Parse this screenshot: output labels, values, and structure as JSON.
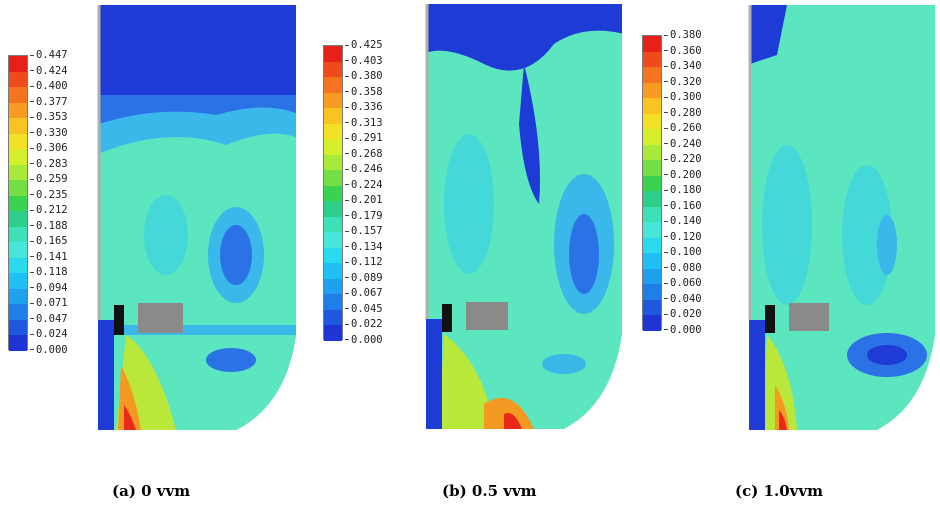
{
  "panels": [
    {
      "caption": "(a) 0 vvm",
      "colorbar": {
        "ticks": [
          "0.447",
          "0.424",
          "0.400",
          "0.377",
          "0.353",
          "0.330",
          "0.306",
          "0.283",
          "0.259",
          "0.235",
          "0.212",
          "0.188",
          "0.165",
          "0.141",
          "0.118",
          "0.094",
          "0.071",
          "0.047",
          "0.024",
          "0.000"
        ]
      }
    },
    {
      "caption": "(b) 0.5 vvm",
      "colorbar": {
        "ticks": [
          "0.425",
          "0.403",
          "0.380",
          "0.358",
          "0.336",
          "0.313",
          "0.291",
          "0.268",
          "0.246",
          "0.224",
          "0.201",
          "0.179",
          "0.157",
          "0.134",
          "0.112",
          "0.089",
          "0.067",
          "0.045",
          "0.022",
          "0.000"
        ]
      }
    },
    {
      "caption": "(c) 1.0vvm",
      "colorbar": {
        "ticks": [
          "0.380",
          "0.360",
          "0.340",
          "0.320",
          "0.300",
          "0.280",
          "0.260",
          "0.240",
          "0.220",
          "0.200",
          "0.180",
          "0.160",
          "0.140",
          "0.120",
          "0.100",
          "0.080",
          "0.060",
          "0.040",
          "0.020",
          "0.000"
        ]
      }
    }
  ],
  "palette": [
    "#e8201a",
    "#ef4a1c",
    "#f4741f",
    "#f79b22",
    "#f9c324",
    "#f4e125",
    "#d6ef2c",
    "#a8ea3a",
    "#73df45",
    "#3ad34f",
    "#2cd08a",
    "#3ee0b8",
    "#48e6d8",
    "#2cdaf0",
    "#1fc1f4",
    "#1fa1f0",
    "#1f7ee8",
    "#1f58de",
    "#1f34d6",
    "#1f1fc8"
  ],
  "field_colors": {
    "deep_blue": "#1f3bd6",
    "blue": "#2a72e6",
    "light_blue": "#3ab8ea",
    "cyan": "#44d8d8",
    "aqua": "#5ce6c0",
    "green": "#6fe28c",
    "yellow_green": "#b9e83a",
    "yellow": "#f2e02a",
    "orange": "#f49a22",
    "red": "#e82a1a",
    "impeller_grey": "#8a8a8a",
    "shaft": "#111111"
  }
}
